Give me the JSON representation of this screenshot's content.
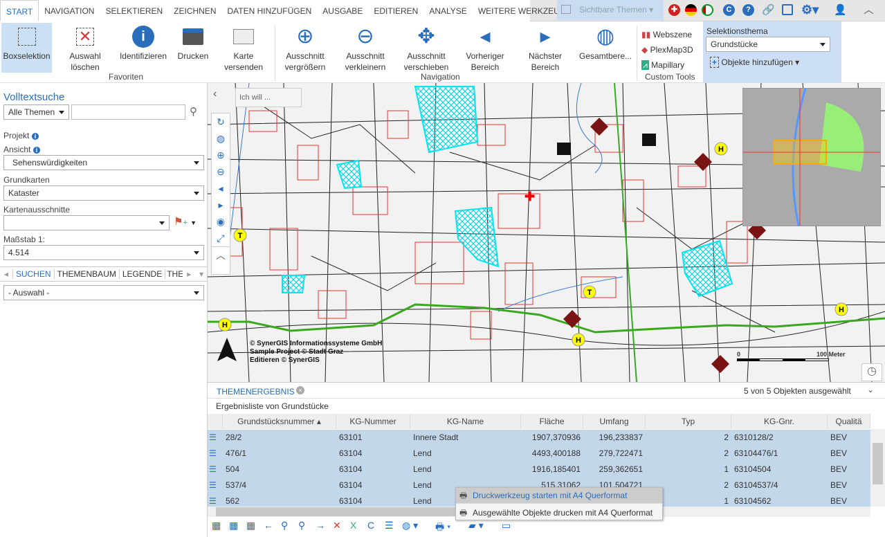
{
  "tabs": [
    "START",
    "NAVIGATION",
    "SELEKTIEREN",
    "ZEICHNEN",
    "DATEN HINZUFÜGEN",
    "AUSGABE",
    "EDITIEREN",
    "ANALYSE",
    "WEITERE WERKZEUGE"
  ],
  "visible_themes": "Sichtbare Themen",
  "top_icons": [
    "uk-flag-icon",
    "german-flag-icon",
    "uae-flag-icon",
    "c-icon",
    "help-icon",
    "link-icon",
    "save-icon",
    "gear-icon",
    "user-icon",
    "collapse-icon"
  ],
  "ribbon": {
    "favoriten": {
      "label": "Favoriten",
      "buttons": [
        "Boxselektion",
        "Auswahl\nlöschen",
        "Identifizieren",
        "Drucken",
        "Karte\nversenden"
      ]
    },
    "navigation": {
      "label": "Navigation",
      "buttons": [
        "Ausschnitt\nvergrößern",
        "Ausschnitt\nverkleinern",
        "Ausschnitt\nverschieben",
        "Vorheriger\nBereich",
        "Nächster\nBereich",
        "Gesamtbere..."
      ]
    },
    "custom": {
      "label": "Custom Tools",
      "items": [
        "Webszene",
        "PlexMap3D",
        "Mapillary"
      ]
    },
    "selection": {
      "label": "Selektionsthema",
      "value": "Grundstücke",
      "add": "Objekte hinzufügen"
    }
  },
  "left": {
    "title": "Volltextsuche",
    "theme_select": "Alle Themen",
    "search_value": "",
    "projekt": "Projekt",
    "ansicht": "Ansicht",
    "ansicht_value": "Sehenswürdigkeiten",
    "grundkarten": "Grundkarten",
    "grundkarten_value": "Kataster",
    "kartenausschnitte": "Kartenausschnitte",
    "kartenausschnitte_value": "",
    "massstab": "Maßstab 1:",
    "massstab_value": "4.514",
    "subtabs": [
      "SUCHEN",
      "THEMENBAUM",
      "LEGENDE",
      "THEM"
    ],
    "auswahl": "- Auswahl -"
  },
  "map": {
    "ich_will": "Ich will ...",
    "copyright": [
      "© SynerGIS Informationssysteme GmbH",
      "Sample Project © Stadt Graz",
      "Editieren © SynerGIS"
    ],
    "scale_start": "0",
    "scale_end": "100 Meter"
  },
  "results": {
    "tab": "THEMENERGEBNIS",
    "count": "5 von 5 Objekten ausgewählt",
    "subtitle": "Ergebnisliste von Grundstücke",
    "columns": [
      "Grundstücksnummer",
      "KG-Nummer",
      "KG-Name",
      "Fläche",
      "Umfang",
      "Typ",
      "KG-Gnr.",
      "Qualitä"
    ],
    "rows": [
      [
        "28/2",
        "63101",
        "Innere Stadt",
        "1907,370936",
        "196,233837",
        "2",
        "6310128/2",
        "BEV"
      ],
      [
        "476/1",
        "63104",
        "Lend",
        "4493,400188",
        "279,722471",
        "2",
        "63104476/1",
        "BEV"
      ],
      [
        "504",
        "63104",
        "Lend",
        "1916,185401",
        "259,362651",
        "1",
        "63104504",
        "BEV"
      ],
      [
        "537/4",
        "63104",
        "Lend",
        "515,31062",
        "101,504721",
        "2",
        "63104537/4",
        "BEV"
      ],
      [
        "562",
        "63104",
        "Lend",
        "",
        "",
        "1",
        "63104562",
        "BEV"
      ]
    ]
  },
  "context_menu": [
    "Druckwerkzeug starten mit A4 Querformat",
    "Ausgewählte Objekte drucken mit A4 Querformat"
  ],
  "colors": {
    "accent": "#2a6ebb",
    "selection_row": "#c3d7ea",
    "ribbon_highlight": "#cddff6",
    "parcel_selected": "#00e5ee",
    "bus_line": "#3aa81e"
  }
}
